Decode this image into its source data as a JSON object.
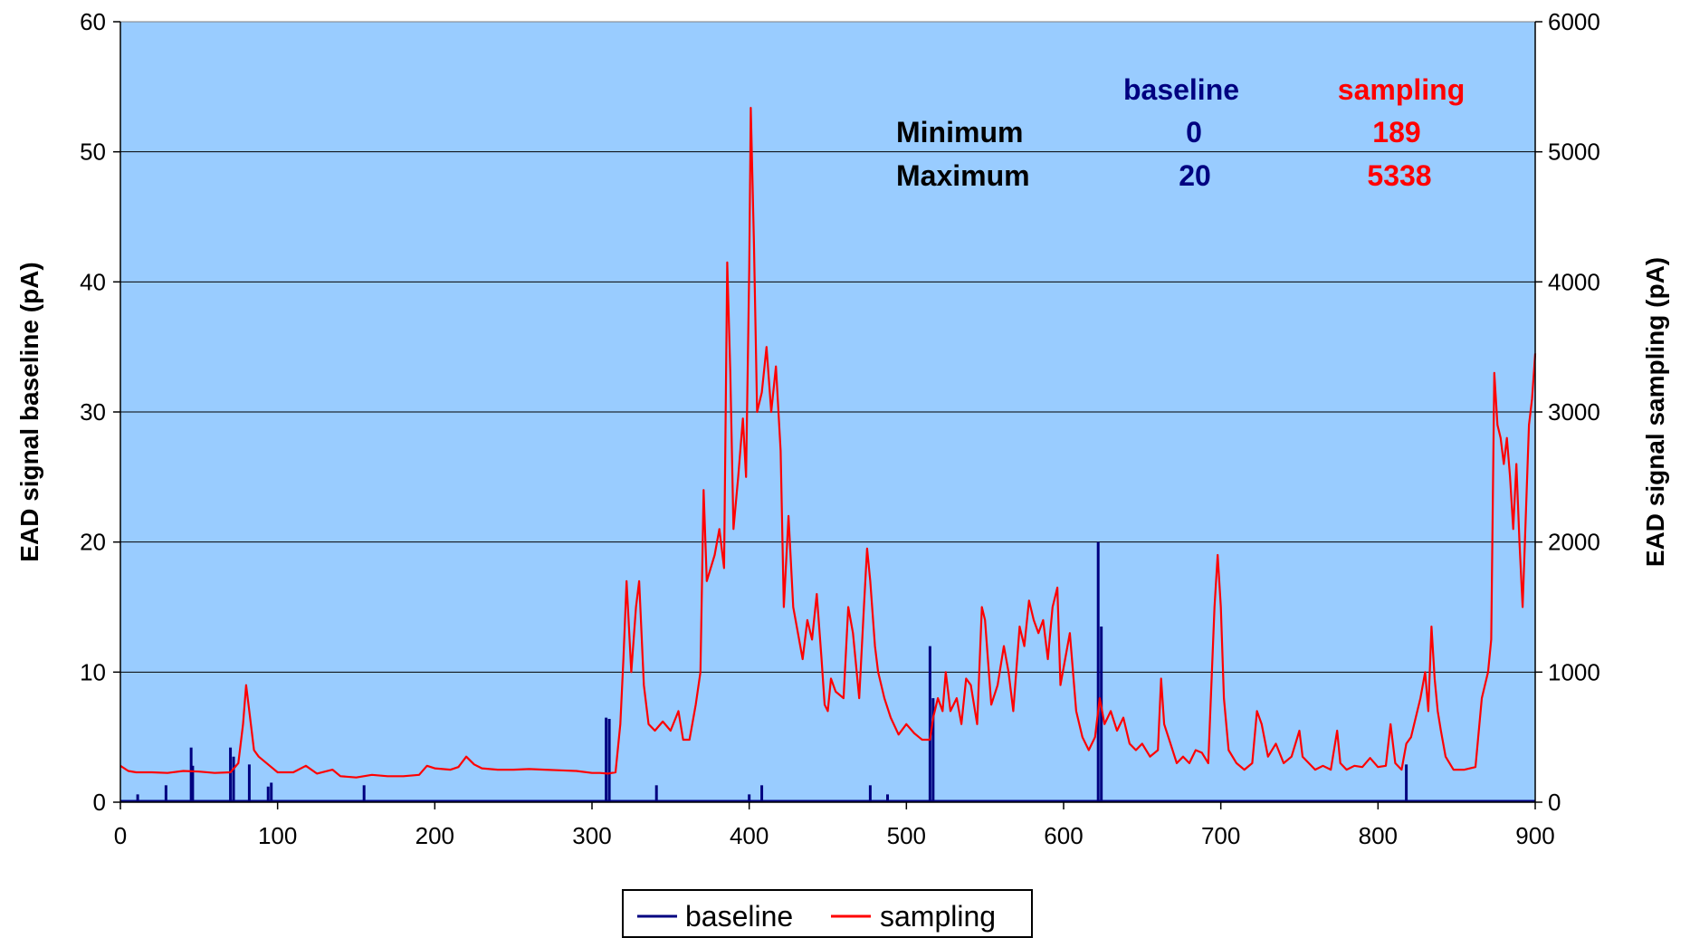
{
  "chart_data": {
    "type": "line",
    "title": "",
    "xlabel": "",
    "ylabel": "EAD signal baseline (pA)",
    "y2label": "EAD signal sampling (pA)",
    "xlim": [
      0,
      900
    ],
    "ylim": [
      0,
      60
    ],
    "y2lim": [
      0,
      6000
    ],
    "x_ticks": [
      "0",
      "100",
      "200",
      "300",
      "400",
      "500",
      "600",
      "700",
      "800",
      "900"
    ],
    "y_ticks": [
      "0",
      "10",
      "20",
      "30",
      "40",
      "50",
      "60"
    ],
    "y2_ticks": [
      "0",
      "1000",
      "2000",
      "3000",
      "4000",
      "5000",
      "6000"
    ],
    "grid": "horizontal",
    "plot_background": "#99CCFF",
    "legend_position": "bottom",
    "series": [
      {
        "name": "baseline",
        "axis": "left",
        "style": "spikes",
        "color": "#000080",
        "points": [
          [
            11,
            0.6
          ],
          [
            29,
            1.3
          ],
          [
            45,
            4.2
          ],
          [
            46,
            2.8
          ],
          [
            70,
            4.2
          ],
          [
            72,
            3.5
          ],
          [
            82,
            2.9
          ],
          [
            94,
            1.2
          ],
          [
            96,
            1.5
          ],
          [
            155,
            1.3
          ],
          [
            309,
            6.5
          ],
          [
            311,
            6.4
          ],
          [
            341,
            1.3
          ],
          [
            400,
            0.6
          ],
          [
            408,
            1.3
          ],
          [
            477,
            1.3
          ],
          [
            488,
            0.6
          ],
          [
            515,
            12
          ],
          [
            517,
            8
          ],
          [
            622,
            20
          ],
          [
            624,
            13.5
          ],
          [
            818,
            2.9
          ]
        ]
      },
      {
        "name": "sampling",
        "axis": "right",
        "style": "line",
        "color": "#FF0000",
        "points": [
          [
            0,
            280
          ],
          [
            5,
            240
          ],
          [
            10,
            230
          ],
          [
            20,
            230
          ],
          [
            30,
            225
          ],
          [
            40,
            240
          ],
          [
            50,
            235
          ],
          [
            60,
            225
          ],
          [
            70,
            230
          ],
          [
            75,
            300
          ],
          [
            78,
            600
          ],
          [
            80,
            900
          ],
          [
            82,
            700
          ],
          [
            85,
            400
          ],
          [
            88,
            350
          ],
          [
            95,
            280
          ],
          [
            100,
            230
          ],
          [
            110,
            230
          ],
          [
            118,
            280
          ],
          [
            125,
            220
          ],
          [
            135,
            250
          ],
          [
            140,
            200
          ],
          [
            150,
            190
          ],
          [
            160,
            210
          ],
          [
            170,
            200
          ],
          [
            180,
            200
          ],
          [
            190,
            210
          ],
          [
            195,
            280
          ],
          [
            200,
            260
          ],
          [
            210,
            250
          ],
          [
            215,
            270
          ],
          [
            220,
            350
          ],
          [
            225,
            290
          ],
          [
            230,
            260
          ],
          [
            240,
            250
          ],
          [
            250,
            250
          ],
          [
            260,
            255
          ],
          [
            270,
            250
          ],
          [
            280,
            245
          ],
          [
            290,
            240
          ],
          [
            300,
            225
          ],
          [
            305,
            225
          ],
          [
            310,
            220
          ],
          [
            315,
            230
          ],
          [
            318,
            600
          ],
          [
            320,
            1100
          ],
          [
            322,
            1700
          ],
          [
            325,
            1000
          ],
          [
            328,
            1500
          ],
          [
            330,
            1700
          ],
          [
            333,
            900
          ],
          [
            336,
            600
          ],
          [
            340,
            550
          ],
          [
            345,
            620
          ],
          [
            350,
            550
          ],
          [
            355,
            700
          ],
          [
            358,
            480
          ],
          [
            362,
            480
          ],
          [
            366,
            750
          ],
          [
            369,
            1000
          ],
          [
            371,
            2400
          ],
          [
            373,
            1700
          ],
          [
            378,
            1900
          ],
          [
            381,
            2100
          ],
          [
            384,
            1800
          ],
          [
            386,
            4150
          ],
          [
            388,
            3300
          ],
          [
            390,
            2100
          ],
          [
            393,
            2500
          ],
          [
            396,
            2950
          ],
          [
            398,
            2500
          ],
          [
            400,
            4100
          ],
          [
            401,
            5338
          ],
          [
            403,
            4300
          ],
          [
            405,
            3000
          ],
          [
            408,
            3150
          ],
          [
            411,
            3500
          ],
          [
            414,
            3000
          ],
          [
            417,
            3350
          ],
          [
            420,
            2700
          ],
          [
            422,
            1500
          ],
          [
            425,
            2200
          ],
          [
            428,
            1500
          ],
          [
            431,
            1300
          ],
          [
            434,
            1100
          ],
          [
            437,
            1400
          ],
          [
            440,
            1250
          ],
          [
            443,
            1600
          ],
          [
            446,
            1100
          ],
          [
            448,
            750
          ],
          [
            450,
            700
          ],
          [
            452,
            950
          ],
          [
            455,
            850
          ],
          [
            460,
            800
          ],
          [
            463,
            1500
          ],
          [
            466,
            1300
          ],
          [
            470,
            800
          ],
          [
            473,
            1500
          ],
          [
            475,
            1950
          ],
          [
            477,
            1700
          ],
          [
            480,
            1200
          ],
          [
            482,
            1000
          ],
          [
            486,
            800
          ],
          [
            490,
            650
          ],
          [
            495,
            520
          ],
          [
            500,
            600
          ],
          [
            505,
            530
          ],
          [
            510,
            480
          ],
          [
            515,
            480
          ],
          [
            517,
            650
          ],
          [
            520,
            800
          ],
          [
            523,
            700
          ],
          [
            525,
            1000
          ],
          [
            528,
            700
          ],
          [
            532,
            800
          ],
          [
            535,
            600
          ],
          [
            538,
            950
          ],
          [
            541,
            900
          ],
          [
            545,
            600
          ],
          [
            548,
            1500
          ],
          [
            550,
            1400
          ],
          [
            554,
            750
          ],
          [
            558,
            900
          ],
          [
            562,
            1200
          ],
          [
            565,
            1000
          ],
          [
            568,
            700
          ],
          [
            572,
            1350
          ],
          [
            575,
            1200
          ],
          [
            578,
            1550
          ],
          [
            581,
            1400
          ],
          [
            584,
            1300
          ],
          [
            587,
            1400
          ],
          [
            590,
            1100
          ],
          [
            593,
            1500
          ],
          [
            596,
            1650
          ],
          [
            598,
            900
          ],
          [
            601,
            1100
          ],
          [
            604,
            1300
          ],
          [
            608,
            700
          ],
          [
            612,
            500
          ],
          [
            616,
            400
          ],
          [
            620,
            500
          ],
          [
            623,
            800
          ],
          [
            626,
            600
          ],
          [
            630,
            700
          ],
          [
            634,
            550
          ],
          [
            638,
            650
          ],
          [
            642,
            450
          ],
          [
            646,
            400
          ],
          [
            650,
            450
          ],
          [
            655,
            350
          ],
          [
            660,
            400
          ],
          [
            662,
            950
          ],
          [
            664,
            600
          ],
          [
            668,
            450
          ],
          [
            672,
            300
          ],
          [
            676,
            350
          ],
          [
            680,
            300
          ],
          [
            684,
            400
          ],
          [
            688,
            380
          ],
          [
            692,
            300
          ],
          [
            696,
            1500
          ],
          [
            698,
            1900
          ],
          [
            700,
            1500
          ],
          [
            702,
            800
          ],
          [
            705,
            400
          ],
          [
            710,
            300
          ],
          [
            715,
            250
          ],
          [
            720,
            300
          ],
          [
            723,
            700
          ],
          [
            726,
            600
          ],
          [
            730,
            350
          ],
          [
            735,
            450
          ],
          [
            740,
            300
          ],
          [
            745,
            350
          ],
          [
            750,
            550
          ],
          [
            752,
            350
          ],
          [
            756,
            300
          ],
          [
            760,
            250
          ],
          [
            765,
            280
          ],
          [
            770,
            250
          ],
          [
            774,
            550
          ],
          [
            776,
            300
          ],
          [
            780,
            250
          ],
          [
            785,
            280
          ],
          [
            790,
            270
          ],
          [
            795,
            340
          ],
          [
            800,
            270
          ],
          [
            805,
            280
          ],
          [
            808,
            600
          ],
          [
            811,
            300
          ],
          [
            815,
            250
          ],
          [
            818,
            450
          ],
          [
            821,
            500
          ],
          [
            824,
            650
          ],
          [
            827,
            800
          ],
          [
            830,
            1000
          ],
          [
            832,
            700
          ],
          [
            834,
            1350
          ],
          [
            836,
            950
          ],
          [
            838,
            700
          ],
          [
            840,
            550
          ],
          [
            843,
            350
          ],
          [
            848,
            250
          ],
          [
            855,
            250
          ],
          [
            862,
            270
          ],
          [
            866,
            800
          ],
          [
            870,
            1000
          ],
          [
            872,
            1250
          ],
          [
            874,
            3300
          ],
          [
            876,
            2900
          ],
          [
            878,
            2800
          ],
          [
            880,
            2600
          ],
          [
            882,
            2800
          ],
          [
            884,
            2500
          ],
          [
            886,
            2100
          ],
          [
            888,
            2600
          ],
          [
            890,
            2000
          ],
          [
            892,
            1500
          ],
          [
            894,
            2200
          ],
          [
            896,
            2900
          ],
          [
            898,
            3100
          ],
          [
            900,
            3450
          ]
        ]
      }
    ],
    "stats_table": {
      "col_headers": [
        "baseline",
        "sampling"
      ],
      "header_colors": [
        "#000080",
        "#FF0000"
      ],
      "rows": [
        {
          "label": "Minimum",
          "values": [
            "0",
            "189"
          ]
        },
        {
          "label": "Maximum",
          "values": [
            "20",
            "5338"
          ]
        }
      ]
    },
    "legend": [
      {
        "label": "baseline",
        "color": "#000080"
      },
      {
        "label": "sampling",
        "color": "#FF0000"
      }
    ]
  }
}
